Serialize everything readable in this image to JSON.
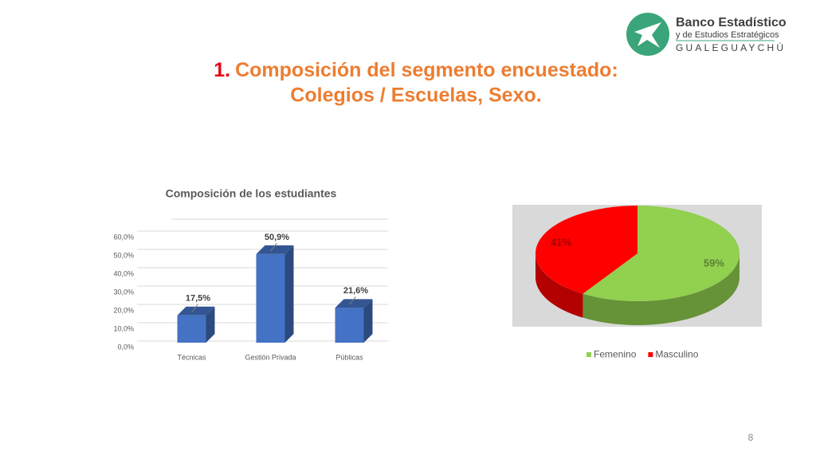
{
  "header": {
    "number": "1.",
    "title_line1": "Composición del segmento encuestado:",
    "title_line2": "Colegios / Escuelas, Sexo."
  },
  "logo": {
    "name": "Banco Estadístico",
    "subtitle": "y de Estudios Estratégicos",
    "city": "GUALEGUAYCHÚ"
  },
  "chart_data": [
    {
      "type": "bar",
      "title": "Composición de los estudiantes",
      "categories": [
        "Técnicas",
        "Gestión Privada",
        "Públicas"
      ],
      "values": [
        17.5,
        50.9,
        21.6
      ],
      "value_labels": [
        "17,5%",
        "50,9%",
        "21,6%"
      ],
      "color": "#4472c4",
      "ylim": [
        0,
        70
      ],
      "yticks": [
        {
          "value": 0,
          "label": "0,0%"
        },
        {
          "value": 10,
          "label": "10,0%"
        },
        {
          "value": 20,
          "label": "20,0%"
        },
        {
          "value": 30,
          "label": "30,0%"
        },
        {
          "value": 40,
          "label": "40,0%"
        },
        {
          "value": 50,
          "label": "50,0%"
        },
        {
          "value": 60,
          "label": "60,0%"
        }
      ],
      "grid": true
    },
    {
      "type": "pie",
      "categories": [
        "Femenino",
        "Masculino"
      ],
      "values": [
        59,
        41
      ],
      "value_labels": [
        "59%",
        "41%"
      ],
      "colors": [
        "#92d050",
        "#ff0000"
      ],
      "legend": "bottom"
    }
  ],
  "page_number": "8"
}
